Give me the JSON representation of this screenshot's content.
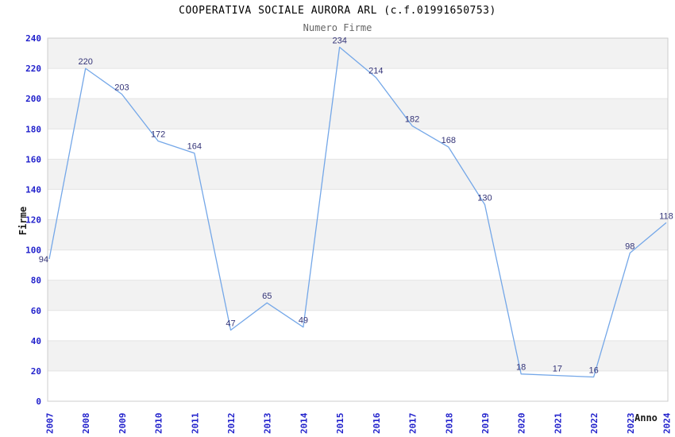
{
  "page": {
    "title": "COOPERATIVA SOCIALE AURORA ARL (c.f.01991650753)",
    "subtitle": "Numero Firme"
  },
  "chart_data": {
    "type": "line",
    "title": "COOPERATIVA SOCIALE AURORA ARL (c.f.01991650753)",
    "subtitle": "Numero Firme",
    "xlabel": "Anno",
    "ylabel": "Firme",
    "categories": [
      "2007",
      "2008",
      "2009",
      "2010",
      "2011",
      "2012",
      "2013",
      "2014",
      "2015",
      "2016",
      "2017",
      "2018",
      "2019",
      "2020",
      "2021",
      "2022",
      "2023",
      "2024"
    ],
    "values": [
      94,
      220,
      203,
      172,
      164,
      47,
      65,
      49,
      234,
      214,
      182,
      168,
      130,
      18,
      17,
      16,
      98,
      118
    ],
    "ylim": [
      0,
      240
    ],
    "yticks": [
      0,
      20,
      40,
      60,
      80,
      100,
      120,
      140,
      160,
      180,
      200,
      220,
      240
    ],
    "grid": "horizontal-alternating-bands",
    "legend": "none",
    "data_labels": true,
    "colors": {
      "line": "#74a7e8",
      "tick_label": "#2222cc",
      "data_label": "#333377",
      "band": "#f2f2f2",
      "gridline": "#e4e4e4",
      "border": "#cccccc",
      "title": "#000000",
      "subtitle": "#666666",
      "axis_title": "#1a1a1a",
      "background": "#ffffff"
    }
  }
}
